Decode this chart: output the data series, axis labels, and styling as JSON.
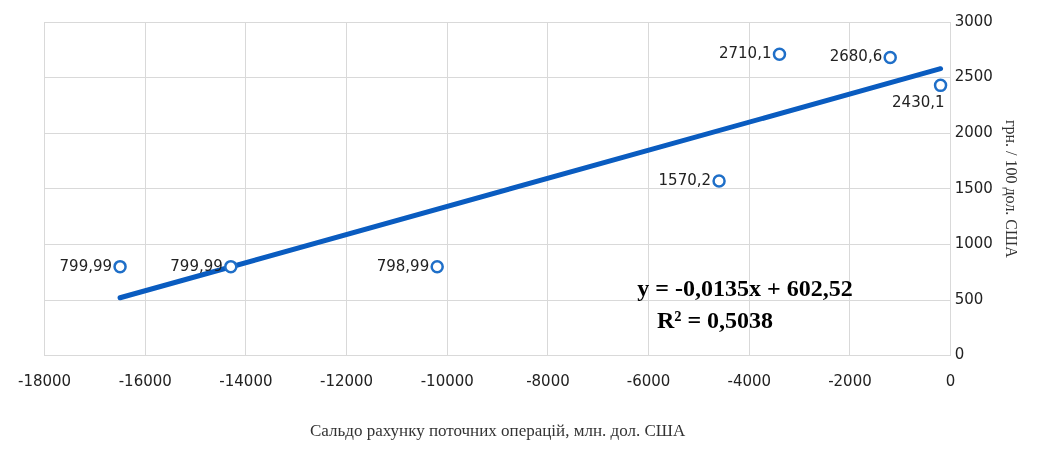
{
  "chart_data": {
    "type": "scatter",
    "xlabel": "Сальдо рахунку поточних операцій, млн. дол. США",
    "ylabel": "грн. / 100 дол. США",
    "series": [
      {
        "color": "#1f6fc8",
        "x": [
          -16500,
          -14300,
          -10200,
          -4600,
          -3400,
          -1200,
          -200
        ],
        "values": [
          799.99,
          799.99,
          798.99,
          1570.2,
          2710.1,
          2680.6,
          2430.1
        ],
        "value_labels": [
          "799,99",
          "799,99",
          "798,99",
          "1570,2",
          "2710,1",
          "2680,6",
          "2430,1"
        ],
        "marker": "circle"
      },
      {
        "type": "line",
        "color": "#0a5cc0",
        "x": [
          -16500,
          -200
        ],
        "values": [
          520,
          2580
        ],
        "marker": "none"
      }
    ],
    "xlim": [
      -18000,
      0
    ],
    "xticks": [
      -18000,
      -16000,
      -14000,
      -12000,
      -10000,
      -8000,
      -6000,
      -4000,
      -2000,
      0
    ],
    "ylim": [
      0,
      3000
    ],
    "yticks": [
      0,
      500,
      1000,
      1500,
      2000,
      2500,
      3000
    ],
    "grid": true,
    "legend": false,
    "annotations": [
      "y = -0,0135x + 602,52",
      "R² = 0,5038"
    ]
  }
}
